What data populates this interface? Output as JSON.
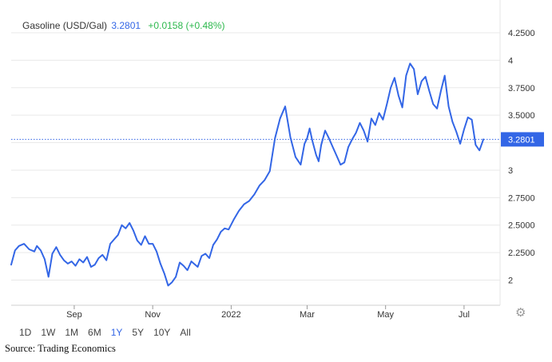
{
  "header": {
    "name": "Gasoline (USD/Gal)",
    "price": "3.2801",
    "change": "+0.0158 (+0.48%)"
  },
  "last_price_label": "3.2801",
  "ranges": [
    {
      "label": "1D",
      "active": false
    },
    {
      "label": "1W",
      "active": false
    },
    {
      "label": "1M",
      "active": false
    },
    {
      "label": "6M",
      "active": false
    },
    {
      "label": "1Y",
      "active": true
    },
    {
      "label": "5Y",
      "active": false
    },
    {
      "label": "10Y",
      "active": false
    },
    {
      "label": "All",
      "active": false
    }
  ],
  "settings_icon": "gear-icon",
  "source": "Source: Trading Economics",
  "colors": {
    "line": "#3366e6",
    "up": "#2db84d",
    "grid": "#e9e9e9",
    "axis": "#333333"
  },
  "chart_data": {
    "type": "line",
    "title": "Gasoline (USD/Gal)",
    "xlabel": "",
    "ylabel": "",
    "ylim": [
      1.8,
      4.33
    ],
    "xlim": [
      "2021-07-14",
      "2022-07-29"
    ],
    "yticks": [
      2,
      2.25,
      2.5,
      2.75,
      3,
      3.25,
      3.5,
      3.75,
      4,
      4.25
    ],
    "ytick_labels": [
      "2",
      "2.2500",
      "2.5000",
      "2.7500",
      "3",
      "",
      "3.5000",
      "3.7500",
      "4",
      "4.2500"
    ],
    "xticks": [
      {
        "date": "2021-09-01",
        "label": "Sep"
      },
      {
        "date": "2021-11-01",
        "label": "Nov"
      },
      {
        "date": "2022-01-01",
        "label": "2022"
      },
      {
        "date": "2022-03-01",
        "label": "Mar"
      },
      {
        "date": "2022-05-01",
        "label": "May"
      },
      {
        "date": "2022-07-01",
        "label": "Jul"
      }
    ],
    "grid": true,
    "last_value": 3.2801,
    "series": [
      {
        "name": "",
        "x": [
          "2021-07-14",
          "2021-07-17",
          "2021-07-20",
          "2021-07-24",
          "2021-07-28",
          "2021-08-01",
          "2021-08-03",
          "2021-08-06",
          "2021-08-09",
          "2021-08-12",
          "2021-08-15",
          "2021-08-18",
          "2021-08-21",
          "2021-08-24",
          "2021-08-27",
          "2021-08-30",
          "2021-09-02",
          "2021-09-05",
          "2021-09-08",
          "2021-09-11",
          "2021-09-14",
          "2021-09-17",
          "2021-09-20",
          "2021-09-23",
          "2021-09-26",
          "2021-09-29",
          "2021-10-02",
          "2021-10-05",
          "2021-10-08",
          "2021-10-11",
          "2021-10-14",
          "2021-10-17",
          "2021-10-20",
          "2021-10-23",
          "2021-10-26",
          "2021-10-29",
          "2021-11-01",
          "2021-11-04",
          "2021-11-07",
          "2021-11-10",
          "2021-11-13",
          "2021-11-16",
          "2021-11-19",
          "2021-11-22",
          "2021-11-25",
          "2021-11-28",
          "2021-12-01",
          "2021-12-03",
          "2021-12-06",
          "2021-12-09",
          "2021-12-12",
          "2021-12-15",
          "2021-12-18",
          "2021-12-21",
          "2021-12-24",
          "2021-12-27",
          "2021-12-30",
          "2022-01-03",
          "2022-01-07",
          "2022-01-11",
          "2022-01-15",
          "2022-01-19",
          "2022-01-23",
          "2022-01-27",
          "2022-01-31",
          "2022-02-04",
          "2022-02-08",
          "2022-02-12",
          "2022-02-16",
          "2022-02-20",
          "2022-02-24",
          "2022-02-27",
          "2022-03-01",
          "2022-03-03",
          "2022-03-05",
          "2022-03-08",
          "2022-03-10",
          "2022-03-12",
          "2022-03-15",
          "2022-03-18",
          "2022-03-21",
          "2022-03-24",
          "2022-03-27",
          "2022-03-30",
          "2022-04-02",
          "2022-04-05",
          "2022-04-08",
          "2022-04-11",
          "2022-04-14",
          "2022-04-17",
          "2022-04-20",
          "2022-04-23",
          "2022-04-26",
          "2022-04-29",
          "2022-05-02",
          "2022-05-05",
          "2022-05-08",
          "2022-05-11",
          "2022-05-14",
          "2022-05-17",
          "2022-05-20",
          "2022-05-23",
          "2022-05-26",
          "2022-05-29",
          "2022-06-01",
          "2022-06-04",
          "2022-06-07",
          "2022-06-10",
          "2022-06-13",
          "2022-06-16",
          "2022-06-19",
          "2022-06-22",
          "2022-06-25",
          "2022-06-28",
          "2022-07-01",
          "2022-07-04",
          "2022-07-07",
          "2022-07-10",
          "2022-07-13",
          "2022-07-16"
        ],
        "y": [
          2.14,
          2.27,
          2.31,
          2.33,
          2.28,
          2.26,
          2.31,
          2.27,
          2.19,
          2.03,
          2.24,
          2.3,
          2.23,
          2.18,
          2.15,
          2.17,
          2.13,
          2.19,
          2.16,
          2.21,
          2.12,
          2.14,
          2.2,
          2.23,
          2.18,
          2.33,
          2.37,
          2.41,
          2.5,
          2.47,
          2.52,
          2.45,
          2.36,
          2.32,
          2.4,
          2.33,
          2.33,
          2.26,
          2.15,
          2.06,
          1.95,
          1.98,
          2.03,
          2.16,
          2.13,
          2.09,
          2.17,
          2.15,
          2.12,
          2.22,
          2.24,
          2.2,
          2.32,
          2.37,
          2.44,
          2.47,
          2.46,
          2.55,
          2.63,
          2.69,
          2.72,
          2.78,
          2.86,
          2.91,
          2.99,
          3.29,
          3.47,
          3.58,
          3.3,
          3.12,
          3.05,
          3.24,
          3.29,
          3.38,
          3.27,
          3.14,
          3.08,
          3.23,
          3.36,
          3.29,
          3.21,
          3.13,
          3.05,
          3.07,
          3.21,
          3.28,
          3.34,
          3.43,
          3.36,
          3.26,
          3.47,
          3.41,
          3.52,
          3.46,
          3.6,
          3.75,
          3.84,
          3.68,
          3.57,
          3.86,
          3.97,
          3.92,
          3.69,
          3.81,
          3.85,
          3.72,
          3.6,
          3.56,
          3.72,
          3.86,
          3.58,
          3.44,
          3.35,
          3.24,
          3.37,
          3.48,
          3.46,
          3.23,
          3.18,
          3.28
        ]
      }
    ]
  }
}
